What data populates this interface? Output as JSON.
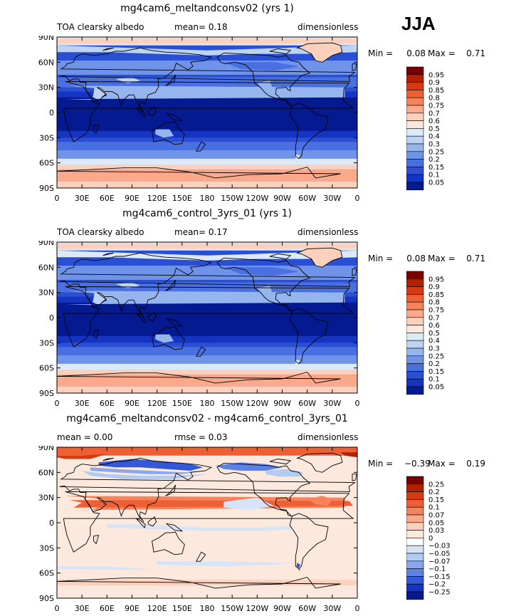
{
  "season": "JJA",
  "land_color": "#000000",
  "panels": [
    {
      "title": "mg4cam6_meltandconsv02 (yrs 1)",
      "left_label": "TOA clearsky albedo",
      "center_label": "mean=    0.18",
      "right_label": "dimensionless",
      "min_label": "Min =",
      "min_value": "0.08",
      "max_label": "Max =",
      "max_value": "0.71",
      "colorbar": [
        "0.95",
        "0.9",
        "0.85",
        "0.8",
        "0.75",
        "0.7",
        "0.6",
        "0.5",
        "0.4",
        "0.3",
        "0.25",
        "0.2",
        "0.15",
        "0.1",
        "0.05"
      ],
      "colors": [
        "#7a0000",
        "#b22200",
        "#d63a10",
        "#ee5f33",
        "#f7835c",
        "#fba98a",
        "#fbd0bc",
        "#fbe8dd",
        "#dce9f8",
        "#bcd4f2",
        "#96b5ee",
        "#6f93e8",
        "#4a6fe0",
        "#2b4fd3",
        "#1534c2",
        "#051a90"
      ],
      "field": "albedo_meltandconsv02"
    },
    {
      "title": "mg4cam6_control_3yrs_01 (yrs 1)",
      "left_label": "TOA clearsky albedo",
      "center_label": "mean=    0.17",
      "right_label": "dimensionless",
      "min_label": "Min =",
      "min_value": "0.08",
      "max_label": "Max =",
      "max_value": "0.71",
      "colorbar": [
        "0.95",
        "0.9",
        "0.85",
        "0.8",
        "0.75",
        "0.7",
        "0.6",
        "0.5",
        "0.4",
        "0.3",
        "0.25",
        "0.2",
        "0.15",
        "0.1",
        "0.05"
      ],
      "colors": [
        "#7a0000",
        "#b22200",
        "#d63a10",
        "#ee5f33",
        "#f7835c",
        "#fba98a",
        "#fbd0bc",
        "#fbe8dd",
        "#dce9f8",
        "#bcd4f2",
        "#96b5ee",
        "#6f93e8",
        "#4a6fe0",
        "#2b4fd3",
        "#1534c2",
        "#051a90"
      ],
      "field": "albedo_control"
    },
    {
      "title": "mg4cam6_meltandconsv02 - mg4cam6_control_3yrs_01",
      "left_label": "mean =    0.00",
      "center_label": "rmse =    0.03",
      "right_label": "dimensionless",
      "min_label": "Min =",
      "min_value": "−0.39",
      "max_label": "Max =",
      "max_value": "0.19",
      "colorbar": [
        "0.25",
        "0.2",
        "0.15",
        "0.1",
        "0.07",
        "0.05",
        "0.03",
        "0",
        "−0.03",
        "−0.05",
        "−0.07",
        "−0.1",
        "−0.15",
        "−0.2",
        "−0.25"
      ],
      "colors": [
        "#7a0000",
        "#b22200",
        "#d63a10",
        "#ee5f33",
        "#f7835c",
        "#fba98a",
        "#fbd0bc",
        "#fce8dc",
        "#ffffff",
        "#d6e4f8",
        "#b2cbf1",
        "#87a8eb",
        "#5d82e4",
        "#3459d6",
        "#1634c2",
        "#051a90"
      ],
      "field": "difference"
    }
  ],
  "lat_ticks": [
    "90N",
    "60N",
    "30N",
    "0",
    "30S",
    "60S",
    "90S"
  ],
  "lon_ticks": [
    "0",
    "30E",
    "60E",
    "90E",
    "120E",
    "150E",
    "180",
    "150W",
    "120W",
    "90W",
    "60W",
    "30W",
    "0"
  ]
}
